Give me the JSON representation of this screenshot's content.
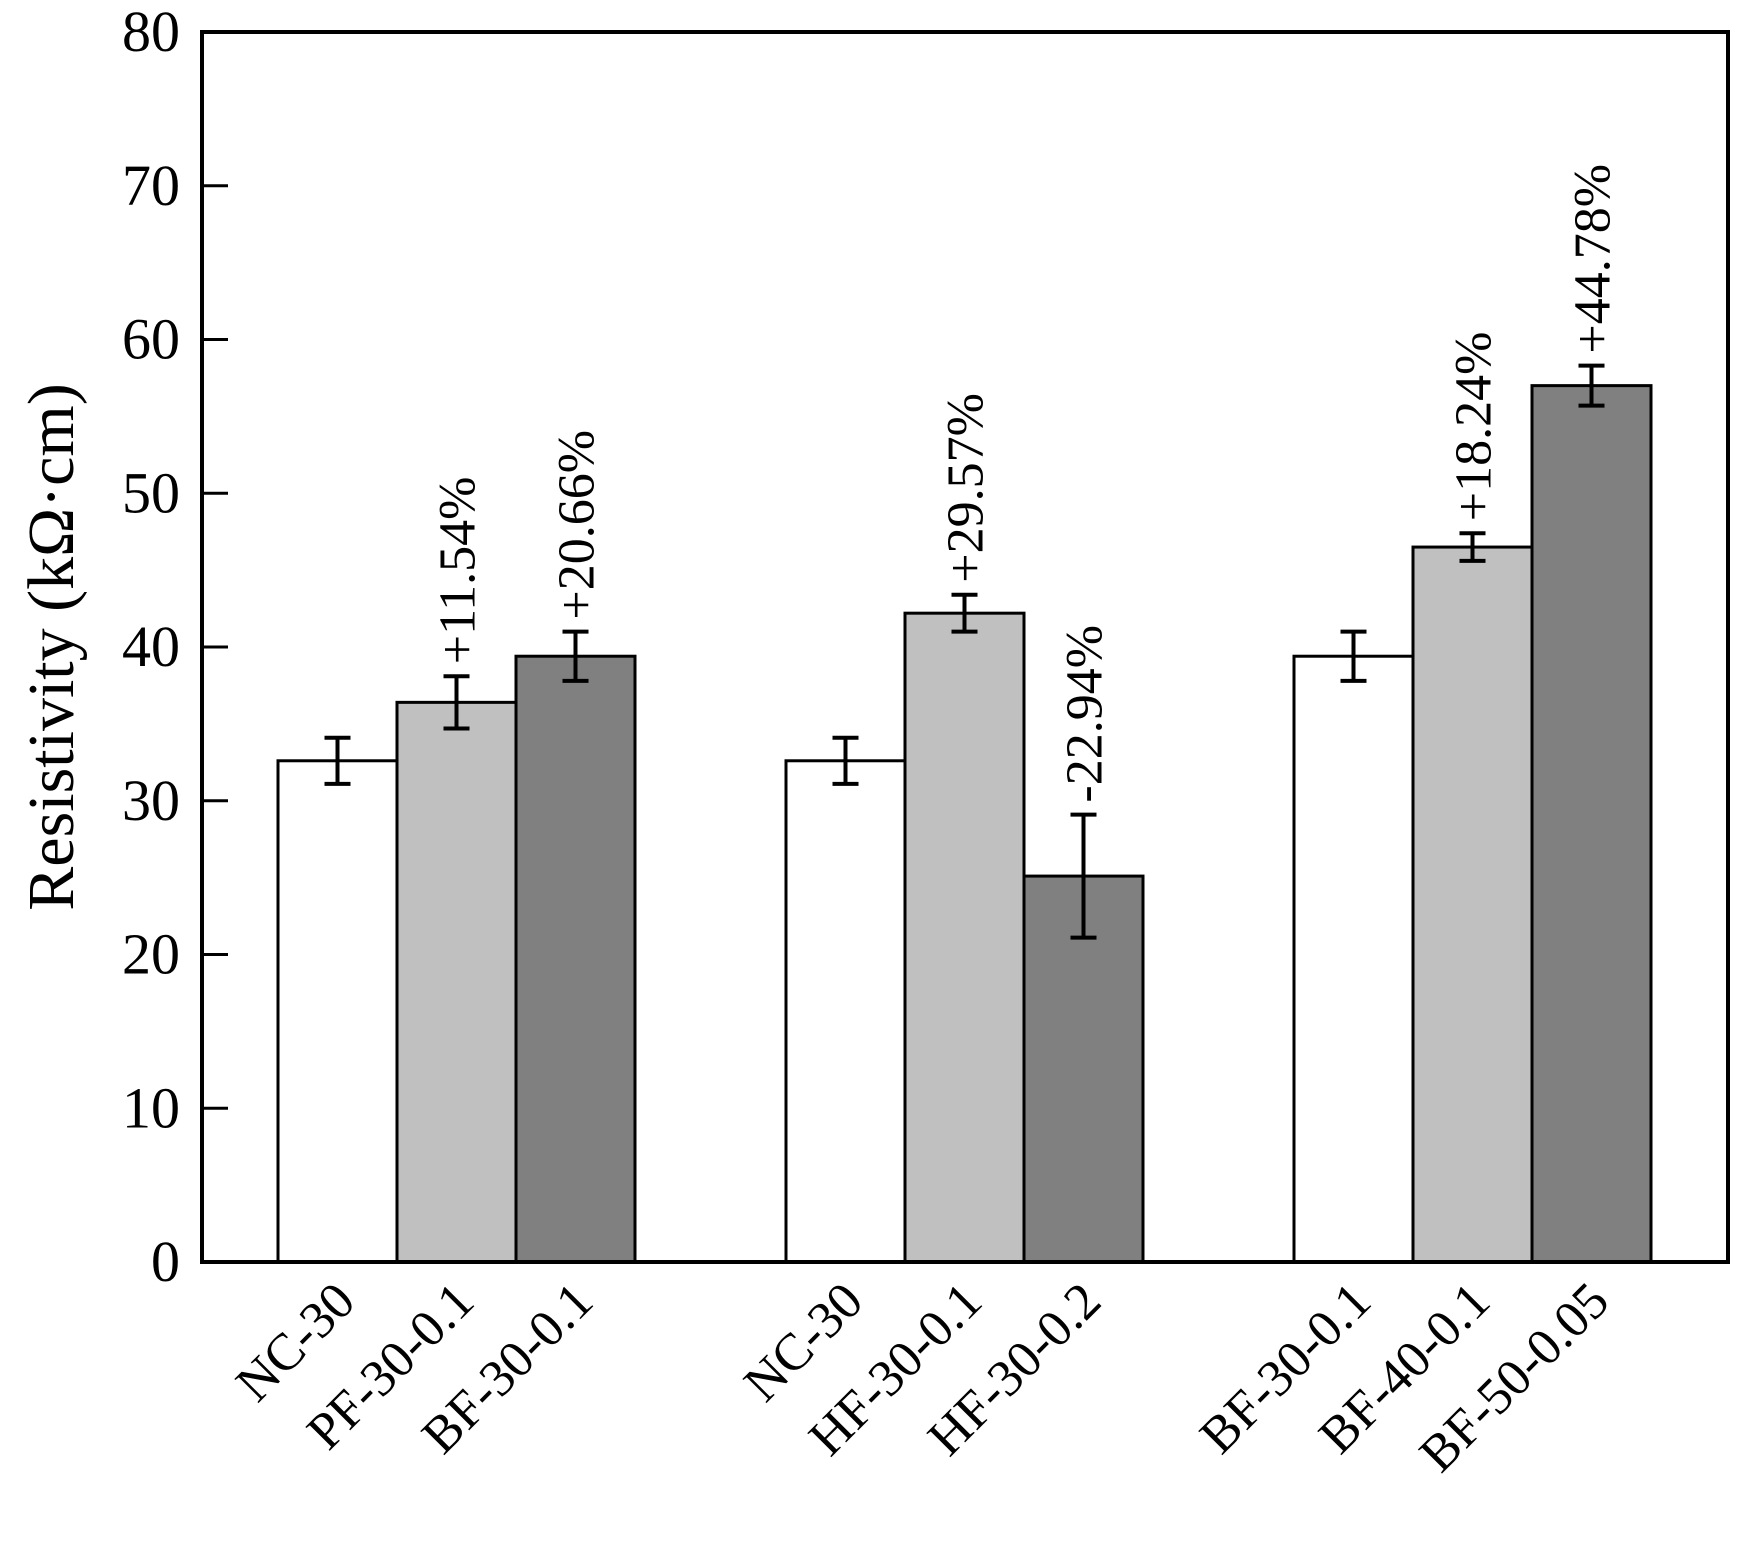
{
  "chart_data": {
    "type": "bar",
    "title": "",
    "xlabel": "",
    "ylabel": "Resistivity (kΩ·cm)",
    "ylim": [
      0,
      80
    ],
    "yticks": [
      0,
      10,
      20,
      30,
      40,
      50,
      60,
      70,
      80
    ],
    "grid": false,
    "groups": [
      {
        "bars": [
          {
            "label": "NC-30",
            "value": 32.6,
            "error": 1.5,
            "fill": "#ffffff",
            "annotation": ""
          },
          {
            "label": "PF-30-0.1",
            "value": 36.4,
            "error": 1.7,
            "fill": "#c0c0c0",
            "annotation": "+11.54%"
          },
          {
            "label": "BF-30-0.1",
            "value": 39.4,
            "error": 1.6,
            "fill": "#808080",
            "annotation": "+20.66%"
          }
        ]
      },
      {
        "bars": [
          {
            "label": "NC-30",
            "value": 32.6,
            "error": 1.5,
            "fill": "#ffffff",
            "annotation": ""
          },
          {
            "label": "HF-30-0.1",
            "value": 42.2,
            "error": 1.2,
            "fill": "#c0c0c0",
            "annotation": "+29.57%"
          },
          {
            "label": "HF-30-0.2",
            "value": 25.1,
            "error": 4.0,
            "fill": "#808080",
            "annotation": "-22.94%"
          }
        ]
      },
      {
        "bars": [
          {
            "label": "BF-30-0.1",
            "value": 39.4,
            "error": 1.6,
            "fill": "#ffffff",
            "annotation": ""
          },
          {
            "label": "BF-40-0.1",
            "value": 46.5,
            "error": 0.9,
            "fill": "#c0c0c0",
            "annotation": "+18.24%"
          },
          {
            "label": "BF-50-0.05",
            "value": 57.0,
            "error": 1.3,
            "fill": "#808080",
            "annotation": "+44.78%"
          }
        ]
      }
    ]
  }
}
